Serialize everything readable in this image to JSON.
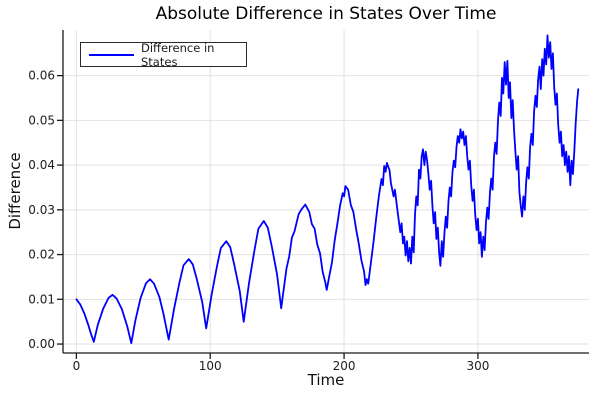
{
  "colors": {
    "line": "#0000ff",
    "grid": "#e2e2e2",
    "axis": "#1a1a1a",
    "tick_label": "#202020",
    "background": "#ffffff",
    "legend_border": "#2a2a2a"
  },
  "chart_data": {
    "type": "line",
    "title": "Absolute Difference in States Over Time",
    "xlabel": "Time",
    "ylabel": "Difference",
    "grid": true,
    "legend_position": "top-left",
    "xlim": [
      -10,
      383
    ],
    "ylim": [
      -0.002,
      0.0702
    ],
    "x_ticks": [
      0,
      100,
      200,
      300
    ],
    "x_tick_labels": [
      "0",
      "100",
      "200",
      "300"
    ],
    "y_ticks": [
      0.0,
      0.01,
      0.02,
      0.03,
      0.04,
      0.05,
      0.06
    ],
    "y_tick_labels": [
      "0.00",
      "0.01",
      "0.02",
      "0.03",
      "0.04",
      "0.05",
      "0.06"
    ],
    "series": [
      {
        "name": "Difference in States",
        "color": "#0000ff",
        "points": [
          [
            0,
            0.01
          ],
          [
            3,
            0.0088
          ],
          [
            6,
            0.0068
          ],
          [
            9,
            0.0042
          ],
          [
            11,
            0.0022
          ],
          [
            13,
            0.0005
          ],
          [
            16,
            0.0043
          ],
          [
            20,
            0.0079
          ],
          [
            24,
            0.0103
          ],
          [
            27,
            0.011
          ],
          [
            30,
            0.0102
          ],
          [
            34,
            0.0078
          ],
          [
            38,
            0.004
          ],
          [
            41,
            0.0002
          ],
          [
            44,
            0.0052
          ],
          [
            48,
            0.0103
          ],
          [
            52,
            0.0136
          ],
          [
            55,
            0.0145
          ],
          [
            58,
            0.0135
          ],
          [
            62,
            0.0105
          ],
          [
            65,
            0.0068
          ],
          [
            69,
            0.001
          ],
          [
            73,
            0.0079
          ],
          [
            77,
            0.0137
          ],
          [
            80,
            0.0176
          ],
          [
            84,
            0.019
          ],
          [
            87,
            0.0178
          ],
          [
            90,
            0.0145
          ],
          [
            94,
            0.0094
          ],
          [
            97,
            0.0035
          ],
          [
            101,
            0.011
          ],
          [
            105,
            0.0173
          ],
          [
            108,
            0.0215
          ],
          [
            112,
            0.023
          ],
          [
            115,
            0.0216
          ],
          [
            118,
            0.0177
          ],
          [
            122,
            0.0119
          ],
          [
            125,
            0.005
          ],
          [
            129,
            0.0136
          ],
          [
            133,
            0.0209
          ],
          [
            136,
            0.0258
          ],
          [
            140,
            0.0275
          ],
          [
            143,
            0.026
          ],
          [
            146,
            0.0218
          ],
          [
            150,
            0.0155
          ],
          [
            153,
            0.008
          ],
          [
            157,
            0.0169
          ],
          [
            159,
            0.0196
          ],
          [
            161,
            0.0238
          ],
          [
            163,
            0.0252
          ],
          [
            166,
            0.029
          ],
          [
            168,
            0.03
          ],
          [
            171,
            0.0312
          ],
          [
            174,
            0.0295
          ],
          [
            176,
            0.0268
          ],
          [
            178,
            0.0258
          ],
          [
            180,
            0.0222
          ],
          [
            182,
            0.0203
          ],
          [
            184,
            0.0161
          ],
          [
            186,
            0.0138
          ],
          [
            187,
            0.0121
          ],
          [
            189,
            0.0152
          ],
          [
            191,
            0.0183
          ],
          [
            193,
            0.0232
          ],
          [
            195,
            0.0269
          ],
          [
            197,
            0.031
          ],
          [
            199,
            0.0337
          ],
          [
            200,
            0.033
          ],
          [
            201,
            0.0353
          ],
          [
            203,
            0.0345
          ],
          [
            205,
            0.0311
          ],
          [
            207,
            0.0295
          ],
          [
            209,
            0.0257
          ],
          [
            211,
            0.0224
          ],
          [
            213,
            0.0186
          ],
          [
            215,
            0.0162
          ],
          [
            216,
            0.0132
          ],
          [
            217,
            0.0145
          ],
          [
            218,
            0.0135
          ],
          [
            220,
            0.018
          ],
          [
            222,
            0.0228
          ],
          [
            224,
            0.0282
          ],
          [
            226,
            0.0331
          ],
          [
            228,
            0.0369
          ],
          [
            229,
            0.0355
          ],
          [
            230,
            0.0398
          ],
          [
            231,
            0.0385
          ],
          [
            232,
            0.0405
          ],
          [
            234,
            0.0388
          ],
          [
            235,
            0.036
          ],
          [
            237,
            0.033
          ],
          [
            238,
            0.0345
          ],
          [
            240,
            0.0296
          ],
          [
            242,
            0.025
          ],
          [
            243,
            0.027
          ],
          [
            244,
            0.0225
          ],
          [
            245,
            0.024
          ],
          [
            246,
            0.0198
          ],
          [
            247,
            0.023
          ],
          [
            248,
            0.0185
          ],
          [
            249,
            0.0215
          ],
          [
            250,
            0.018
          ],
          [
            251,
            0.024
          ],
          [
            252,
            0.0205
          ],
          [
            253,
            0.029
          ],
          [
            254,
            0.033
          ],
          [
            255,
            0.031
          ],
          [
            256,
            0.039
          ],
          [
            257,
            0.037
          ],
          [
            258,
            0.042
          ],
          [
            259,
            0.0435
          ],
          [
            260,
            0.04
          ],
          [
            261,
            0.043
          ],
          [
            262,
            0.041
          ],
          [
            263,
            0.038
          ],
          [
            264,
            0.0345
          ],
          [
            265,
            0.0365
          ],
          [
            266,
            0.031
          ],
          [
            267,
            0.027
          ],
          [
            268,
            0.0295
          ],
          [
            269,
            0.0235
          ],
          [
            270,
            0.026
          ],
          [
            271,
            0.0205
          ],
          [
            272,
            0.0175
          ],
          [
            273,
            0.023
          ],
          [
            274,
            0.0195
          ],
          [
            275,
            0.025
          ],
          [
            276,
            0.0285
          ],
          [
            277,
            0.026
          ],
          [
            278,
            0.032
          ],
          [
            279,
            0.035
          ],
          [
            280,
            0.033
          ],
          [
            281,
            0.0385
          ],
          [
            282,
            0.041
          ],
          [
            283,
            0.0395
          ],
          [
            284,
            0.044
          ],
          [
            285,
            0.0465
          ],
          [
            286,
            0.045
          ],
          [
            287,
            0.048
          ],
          [
            288,
            0.046
          ],
          [
            289,
            0.0475
          ],
          [
            290,
            0.0445
          ],
          [
            291,
            0.0465
          ],
          [
            292,
            0.042
          ],
          [
            293,
            0.039
          ],
          [
            294,
            0.041
          ],
          [
            295,
            0.0355
          ],
          [
            296,
            0.032
          ],
          [
            297,
            0.0345
          ],
          [
            298,
            0.029
          ],
          [
            299,
            0.0255
          ],
          [
            300,
            0.028
          ],
          [
            301,
            0.0225
          ],
          [
            302,
            0.025
          ],
          [
            303,
            0.0195
          ],
          [
            304,
            0.024
          ],
          [
            305,
            0.021
          ],
          [
            306,
            0.027
          ],
          [
            307,
            0.0305
          ],
          [
            308,
            0.028
          ],
          [
            309,
            0.034
          ],
          [
            310,
            0.037
          ],
          [
            311,
            0.0345
          ],
          [
            312,
            0.042
          ],
          [
            313,
            0.045
          ],
          [
            314,
            0.0425
          ],
          [
            315,
            0.05
          ],
          [
            316,
            0.054
          ],
          [
            317,
            0.051
          ],
          [
            318,
            0.0595
          ],
          [
            319,
            0.056
          ],
          [
            320,
            0.063
          ],
          [
            321,
            0.058
          ],
          [
            322,
            0.0633
          ],
          [
            323,
            0.055
          ],
          [
            324,
            0.0585
          ],
          [
            325,
            0.0505
          ],
          [
            326,
            0.0545
          ],
          [
            327,
            0.048
          ],
          [
            328,
            0.043
          ],
          [
            329,
            0.039
          ],
          [
            330,
            0.042
          ],
          [
            331,
            0.034
          ],
          [
            332,
            0.031
          ],
          [
            333,
            0.0285
          ],
          [
            334,
            0.033
          ],
          [
            335,
            0.03
          ],
          [
            336,
            0.036
          ],
          [
            337,
            0.0395
          ],
          [
            338,
            0.037
          ],
          [
            339,
            0.044
          ],
          [
            340,
            0.047
          ],
          [
            341,
            0.0445
          ],
          [
            342,
            0.052
          ],
          [
            343,
            0.0555
          ],
          [
            344,
            0.053
          ],
          [
            345,
            0.059
          ],
          [
            346,
            0.062
          ],
          [
            347,
            0.057
          ],
          [
            348,
            0.0637
          ],
          [
            349,
            0.06
          ],
          [
            350,
            0.066
          ],
          [
            351,
            0.0625
          ],
          [
            352,
            0.069
          ],
          [
            353,
            0.064
          ],
          [
            354,
            0.0675
          ],
          [
            355,
            0.0615
          ],
          [
            356,
            0.065
          ],
          [
            357,
            0.0575
          ],
          [
            358,
            0.0535
          ],
          [
            359,
            0.056
          ],
          [
            360,
            0.049
          ],
          [
            361,
            0.045
          ],
          [
            362,
            0.0475
          ],
          [
            363,
            0.042
          ],
          [
            364,
            0.0445
          ],
          [
            365,
            0.04
          ],
          [
            366,
            0.043
          ],
          [
            367,
            0.0385
          ],
          [
            368,
            0.042
          ],
          [
            369,
            0.0355
          ],
          [
            370,
            0.041
          ],
          [
            371,
            0.038
          ],
          [
            372,
            0.043
          ],
          [
            373,
            0.049
          ],
          [
            374,
            0.054
          ],
          [
            375,
            0.057
          ]
        ]
      }
    ]
  }
}
